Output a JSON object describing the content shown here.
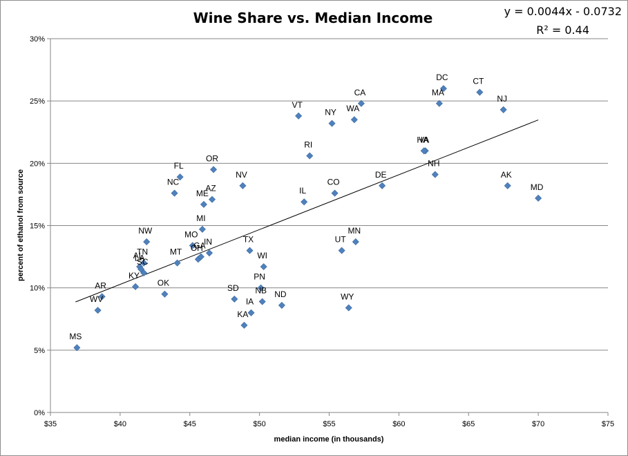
{
  "chart_data": {
    "type": "scatter",
    "title": "Wine Share vs. Median Income",
    "xlabel": "median income (in thousands)",
    "ylabel": "percent of ethanol from source",
    "xlim": [
      35,
      75
    ],
    "ylim": [
      0,
      0.3
    ],
    "x_ticks": [
      "$35",
      "$40",
      "$45",
      "$50",
      "$55",
      "$60",
      "$65",
      "$70",
      "$75"
    ],
    "y_ticks": [
      "0%",
      "5%",
      "10%",
      "15%",
      "20%",
      "25%",
      "30%"
    ],
    "grid": "horizontal",
    "marker_color": "#4f81bd",
    "trendline": {
      "equation": "y = 0.0044x - 0.0732",
      "r_squared": "R² = 0.44",
      "slope": 0.0044,
      "intercept": -0.0732,
      "x_range": [
        36.8,
        70.0
      ]
    },
    "points": [
      {
        "label": "MS",
        "x": 36.9,
        "y": 0.052
      },
      {
        "label": "WV",
        "x": 38.4,
        "y": 0.082
      },
      {
        "label": "AR",
        "x": 38.7,
        "y": 0.093
      },
      {
        "label": "KY",
        "x": 41.1,
        "y": 0.101
      },
      {
        "label": "SC",
        "x": 41.7,
        "y": 0.112
      },
      {
        "label": "AL",
        "x": 41.4,
        "y": 0.117
      },
      {
        "label": "TN",
        "x": 41.7,
        "y": 0.12
      },
      {
        "label": "LA",
        "x": 41.5,
        "y": 0.115
      },
      {
        "label": "NW",
        "x": 41.9,
        "y": 0.137
      },
      {
        "label": "OK",
        "x": 43.2,
        "y": 0.095
      },
      {
        "label": "MT",
        "x": 44.1,
        "y": 0.12
      },
      {
        "label": "NC",
        "x": 43.9,
        "y": 0.176
      },
      {
        "label": "FL",
        "x": 44.3,
        "y": 0.189
      },
      {
        "label": "OH",
        "x": 45.6,
        "y": 0.123
      },
      {
        "label": "GA",
        "x": 45.8,
        "y": 0.125
      },
      {
        "label": "MO",
        "x": 45.2,
        "y": 0.134
      },
      {
        "label": "IN",
        "x": 46.4,
        "y": 0.128
      },
      {
        "label": "MI",
        "x": 45.9,
        "y": 0.147
      },
      {
        "label": "ME",
        "x": 46.0,
        "y": 0.167
      },
      {
        "label": "AZ",
        "x": 46.6,
        "y": 0.171
      },
      {
        "label": "OR",
        "x": 46.7,
        "y": 0.195
      },
      {
        "label": "SD",
        "x": 48.2,
        "y": 0.091
      },
      {
        "label": "KA",
        "x": 48.9,
        "y": 0.07
      },
      {
        "label": "IA",
        "x": 49.4,
        "y": 0.08
      },
      {
        "label": "NB",
        "x": 50.2,
        "y": 0.089
      },
      {
        "label": "PN",
        "x": 50.1,
        "y": 0.1
      },
      {
        "label": "WI",
        "x": 50.3,
        "y": 0.117
      },
      {
        "label": "TX",
        "x": 49.3,
        "y": 0.13
      },
      {
        "label": "NV",
        "x": 48.8,
        "y": 0.182
      },
      {
        "label": "ND",
        "x": 51.6,
        "y": 0.086
      },
      {
        "label": "IL",
        "x": 53.2,
        "y": 0.169
      },
      {
        "label": "RI",
        "x": 53.6,
        "y": 0.206
      },
      {
        "label": "VT",
        "x": 52.8,
        "y": 0.238
      },
      {
        "label": "NY",
        "x": 55.2,
        "y": 0.232
      },
      {
        "label": "CO",
        "x": 55.4,
        "y": 0.176
      },
      {
        "label": "UT",
        "x": 55.9,
        "y": 0.13
      },
      {
        "label": "WY",
        "x": 56.4,
        "y": 0.084
      },
      {
        "label": "MN",
        "x": 56.9,
        "y": 0.137
      },
      {
        "label": "WA",
        "x": 56.8,
        "y": 0.235
      },
      {
        "label": "CA",
        "x": 57.3,
        "y": 0.248
      },
      {
        "label": "DE",
        "x": 58.8,
        "y": 0.182
      },
      {
        "label": "VA",
        "x": 61.9,
        "y": 0.21
      },
      {
        "label": "HA",
        "x": 61.8,
        "y": 0.21
      },
      {
        "label": "NH",
        "x": 62.6,
        "y": 0.191
      },
      {
        "label": "MA",
        "x": 62.9,
        "y": 0.248
      },
      {
        "label": "DC",
        "x": 63.2,
        "y": 0.26
      },
      {
        "label": "CT",
        "x": 65.8,
        "y": 0.257
      },
      {
        "label": "NJ",
        "x": 67.5,
        "y": 0.243
      },
      {
        "label": "AK",
        "x": 67.8,
        "y": 0.182
      },
      {
        "label": "MD",
        "x": 70.0,
        "y": 0.172
      }
    ]
  }
}
